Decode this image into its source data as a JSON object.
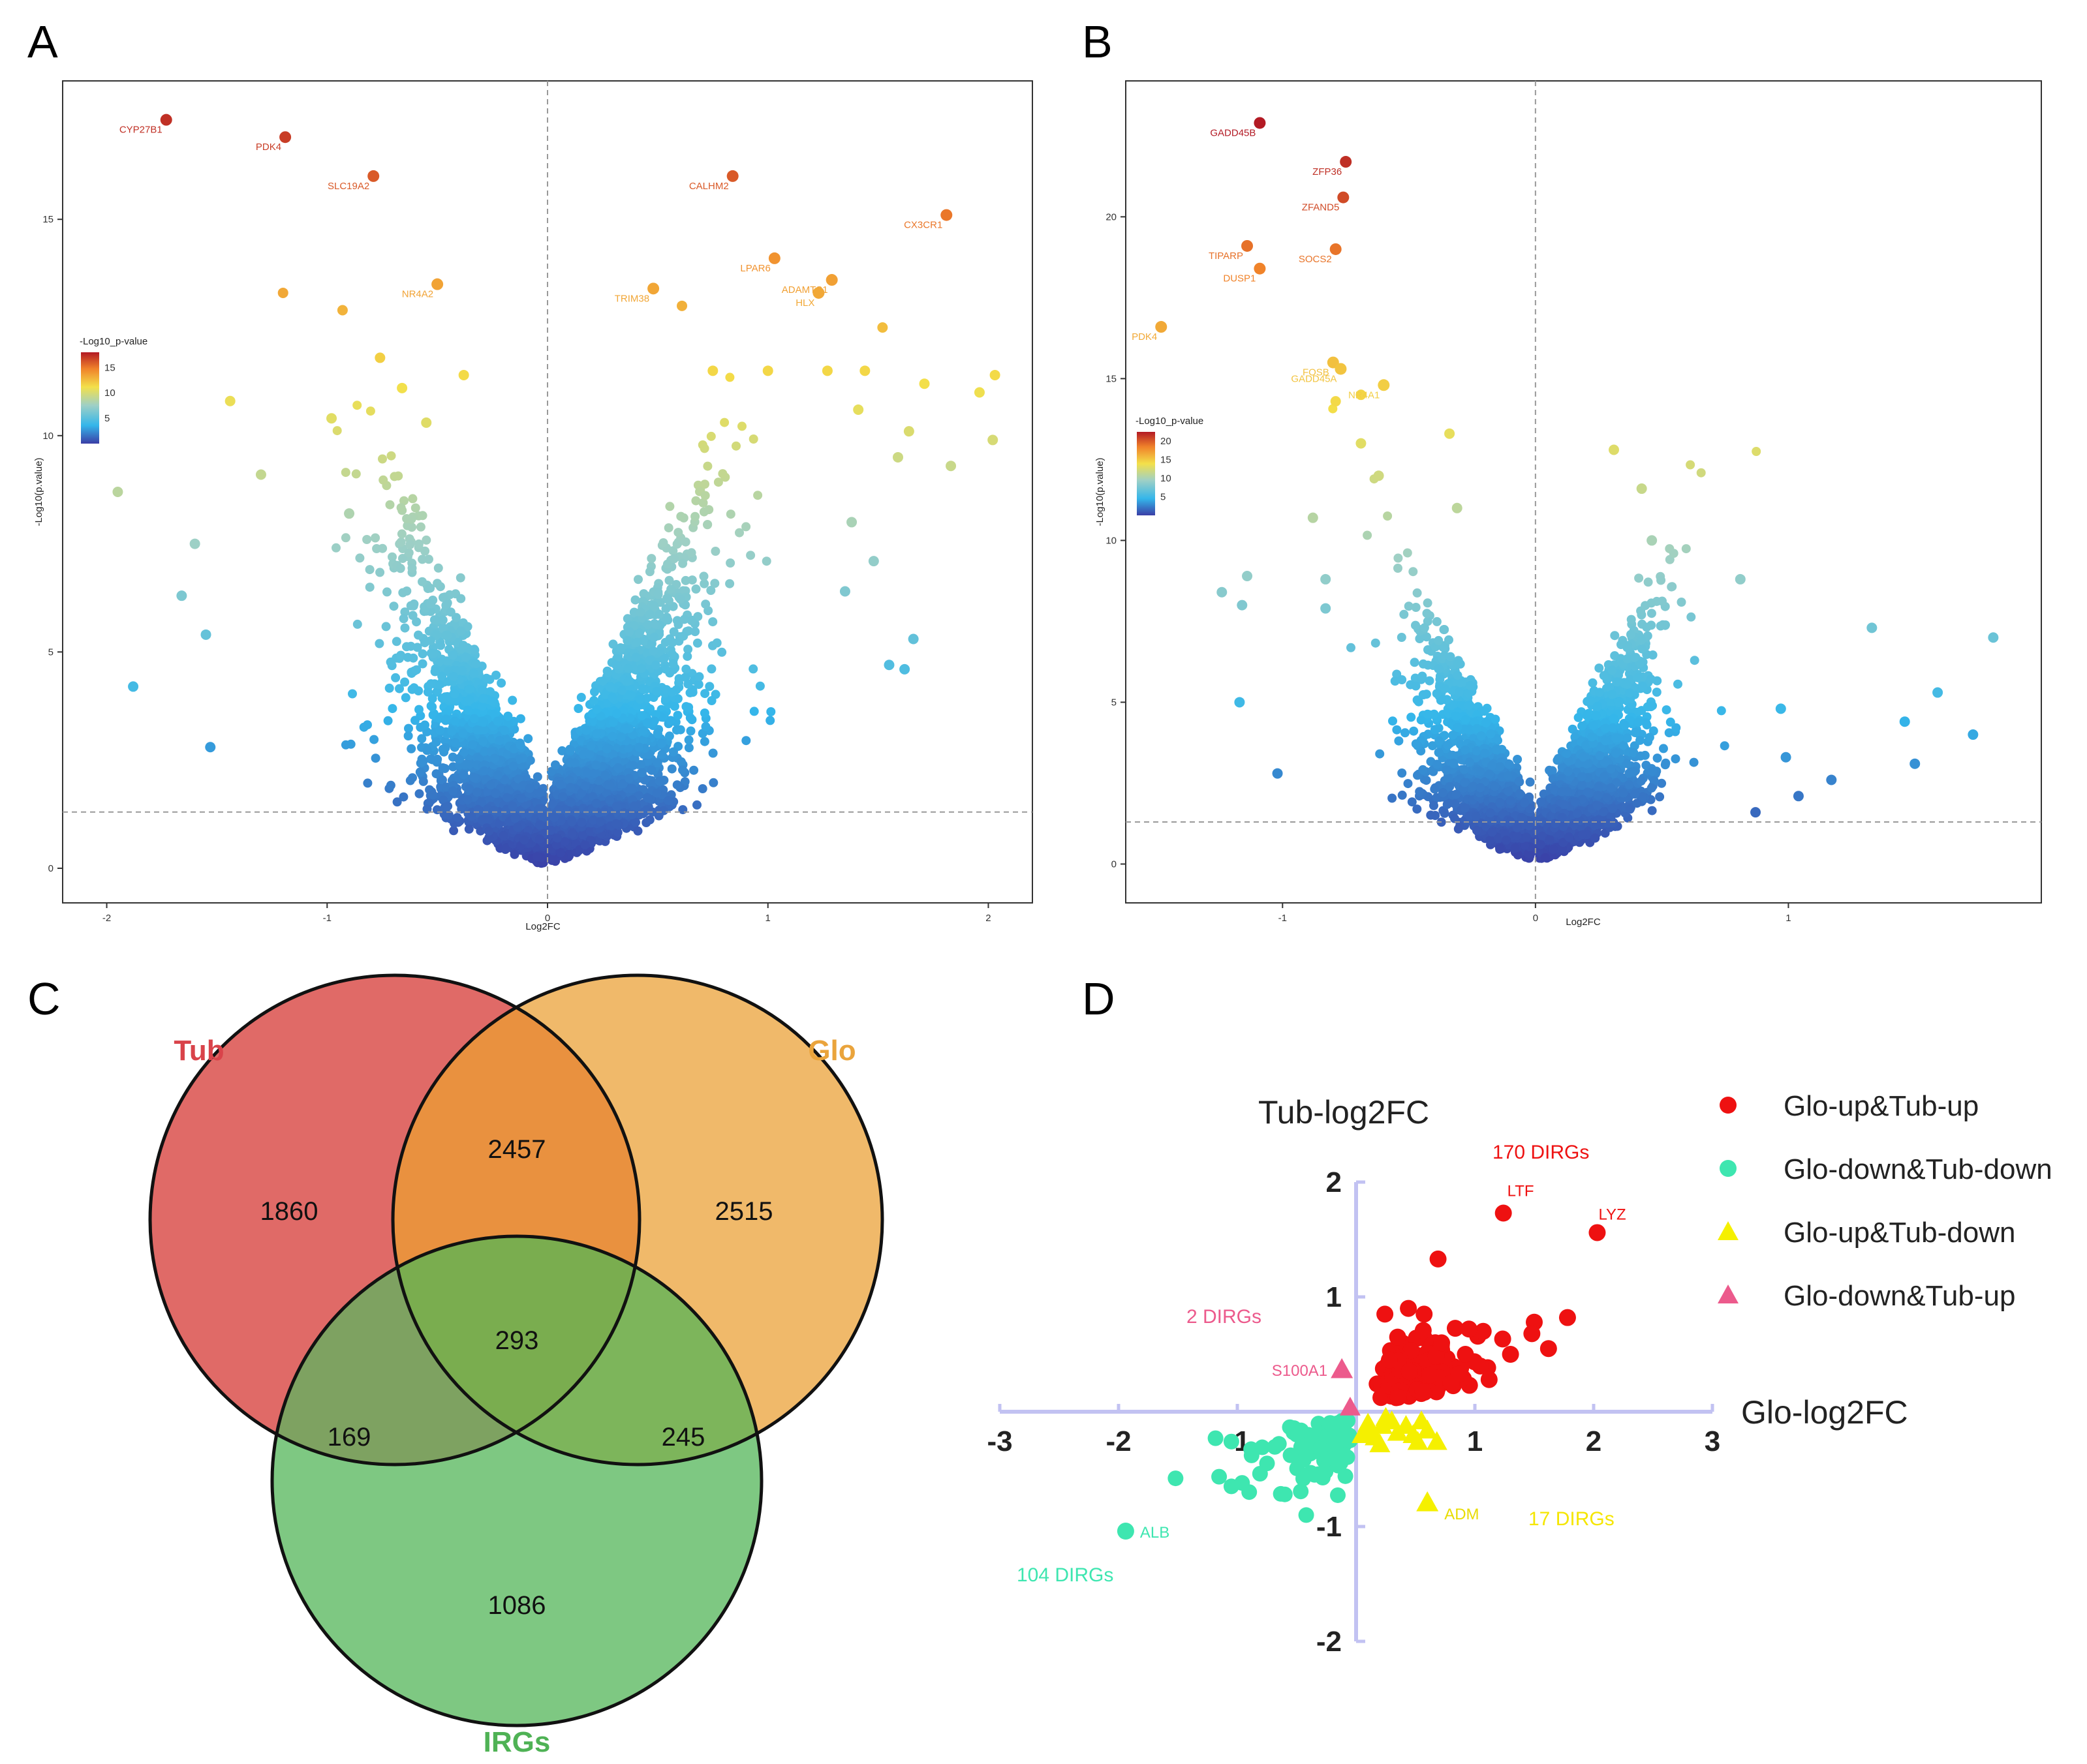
{
  "panels": {
    "a": "A",
    "b": "B",
    "c": "C",
    "d": "D"
  },
  "chart_data": [
    {
      "id": "A",
      "type": "scatter",
      "subtype": "volcano",
      "xlabel": "Log2FC",
      "ylabel": "-Log10(p.value)",
      "xlim": [
        -2.2,
        2.2
      ],
      "ylim": [
        -0.8,
        18.2
      ],
      "xticks": [
        -2,
        -1,
        0,
        1,
        2
      ],
      "yticks": [
        0,
        5,
        10,
        15
      ],
      "threshold_y": 1.3,
      "colorbar": {
        "title": "-Log10_p-value",
        "ticks": [
          5,
          10,
          15
        ],
        "range": [
          0,
          18
        ]
      },
      "labeled_points": [
        {
          "gene": "CYP27B1",
          "x": -1.73,
          "y": 17.3
        },
        {
          "gene": "PDK4",
          "x": -1.19,
          "y": 16.9
        },
        {
          "gene": "SLC19A2",
          "x": -0.79,
          "y": 16.0
        },
        {
          "gene": "NR4A2",
          "x": -0.5,
          "y": 13.5
        },
        {
          "gene": "CALHM2",
          "x": 0.84,
          "y": 16.0
        },
        {
          "gene": "CX3CR1",
          "x": 1.81,
          "y": 15.1
        },
        {
          "gene": "LPAR6",
          "x": 1.03,
          "y": 14.1
        },
        {
          "gene": "TRIM38",
          "x": 0.48,
          "y": 13.4
        },
        {
          "gene": "ADAMTS1",
          "x": 1.29,
          "y": 13.6
        },
        {
          "gene": "HLX",
          "x": 1.23,
          "y": 13.3
        }
      ],
      "other_points": [
        [
          -1.95,
          8.7
        ],
        [
          -1.88,
          4.2
        ],
        [
          -1.66,
          6.3
        ],
        [
          -1.6,
          7.5
        ],
        [
          -1.55,
          5.4
        ],
        [
          -1.53,
          2.8
        ],
        [
          -1.44,
          10.8
        ],
        [
          -1.3,
          9.1
        ],
        [
          -1.2,
          13.3
        ],
        [
          -0.98,
          10.4
        ],
        [
          -0.93,
          12.9
        ],
        [
          -0.9,
          8.2
        ],
        [
          -0.76,
          11.8
        ],
        [
          -0.66,
          11.1
        ],
        [
          -0.55,
          10.3
        ],
        [
          -0.38,
          11.4
        ],
        [
          1.52,
          12.5
        ],
        [
          1.44,
          11.5
        ],
        [
          1.59,
          9.5
        ],
        [
          1.64,
          10.1
        ],
        [
          1.71,
          11.2
        ],
        [
          1.83,
          9.3
        ],
        [
          2.03,
          11.4
        ],
        [
          1.96,
          11.0
        ],
        [
          2.02,
          9.9
        ],
        [
          1.55,
          4.7
        ],
        [
          1.62,
          4.6
        ],
        [
          1.66,
          5.3
        ],
        [
          1.35,
          6.4
        ],
        [
          0.61,
          13.0
        ],
        [
          0.75,
          11.5
        ],
        [
          1.0,
          11.5
        ],
        [
          1.27,
          11.5
        ],
        [
          1.41,
          10.6
        ],
        [
          1.38,
          8.0
        ],
        [
          1.48,
          7.1
        ]
      ]
    },
    {
      "id": "B",
      "type": "scatter",
      "subtype": "volcano",
      "xlabel": "Log2FC",
      "ylabel": "-Log10(p.value)",
      "xlim": [
        -1.62,
        2.0
      ],
      "ylim": [
        -1.2,
        24.2
      ],
      "xticks": [
        -1,
        0,
        1
      ],
      "yticks": [
        0,
        5,
        10,
        15,
        20
      ],
      "threshold_y": 1.3,
      "colorbar": {
        "title": "-Log10_p-value",
        "ticks": [
          5,
          10,
          15,
          20
        ],
        "range": [
          0,
          22.5
        ]
      },
      "labeled_points": [
        {
          "gene": "GADD45B",
          "x": -1.09,
          "y": 22.9
        },
        {
          "gene": "ZFP36",
          "x": -0.75,
          "y": 21.7
        },
        {
          "gene": "ZFAND5",
          "x": -0.76,
          "y": 20.6
        },
        {
          "gene": "TIPARP",
          "x": -1.14,
          "y": 19.1
        },
        {
          "gene": "SOCS2",
          "x": -0.79,
          "y": 19.0
        },
        {
          "gene": "DUSP1",
          "x": -1.09,
          "y": 18.4
        },
        {
          "gene": "PDK4",
          "x": -1.48,
          "y": 16.6
        },
        {
          "gene": "FOSB",
          "x": -0.8,
          "y": 15.5
        },
        {
          "gene": "GADD45A",
          "x": -0.77,
          "y": 15.3
        },
        {
          "gene": "NR4A1",
          "x": -0.6,
          "y": 14.8
        }
      ],
      "other_points": [
        [
          -0.69,
          14.5
        ],
        [
          -0.79,
          14.3
        ],
        [
          -0.69,
          13.0
        ],
        [
          -1.24,
          8.4
        ],
        [
          -1.14,
          8.9
        ],
        [
          -1.16,
          8.0
        ],
        [
          -1.17,
          5.0
        ],
        [
          -1.02,
          2.8
        ],
        [
          -0.88,
          10.7
        ],
        [
          -0.83,
          8.8
        ],
        [
          -0.83,
          7.9
        ],
        [
          -0.62,
          12.0
        ],
        [
          -0.34,
          13.3
        ],
        [
          -0.31,
          11.0
        ],
        [
          1.33,
          7.3
        ],
        [
          1.81,
          7.0
        ],
        [
          1.59,
          5.3
        ],
        [
          1.73,
          4.0
        ],
        [
          1.5,
          3.1
        ],
        [
          1.46,
          4.4
        ],
        [
          1.17,
          2.6
        ],
        [
          1.04,
          2.1
        ],
        [
          0.99,
          3.3
        ],
        [
          0.87,
          1.6
        ],
        [
          0.97,
          4.8
        ],
        [
          0.31,
          12.8
        ],
        [
          0.42,
          11.6
        ],
        [
          0.46,
          10.0
        ],
        [
          0.81,
          8.8
        ]
      ]
    },
    {
      "id": "C",
      "type": "venn",
      "sets": [
        {
          "name": "Tub",
          "color": "#e06060"
        },
        {
          "name": "Glo",
          "color": "#f0b866"
        },
        {
          "name": "IRGs",
          "color": "#7ec882"
        }
      ],
      "regions": [
        {
          "sets": [
            "Tub"
          ],
          "value": 1860
        },
        {
          "sets": [
            "Tub",
            "Glo"
          ],
          "value": 2457
        },
        {
          "sets": [
            "Glo"
          ],
          "value": 2515
        },
        {
          "sets": [
            "Tub",
            "Glo",
            "IRGs"
          ],
          "value": 293
        },
        {
          "sets": [
            "Tub",
            "IRGs"
          ],
          "value": 169
        },
        {
          "sets": [
            "Glo",
            "IRGs"
          ],
          "value": 245
        },
        {
          "sets": [
            "IRGs"
          ],
          "value": 1086
        }
      ]
    },
    {
      "id": "D",
      "type": "scatter",
      "xlabel": "Glo-log2FC",
      "ylabel": "Tub-log2FC",
      "xlim": [
        -3,
        3
      ],
      "ylim": [
        -2,
        2
      ],
      "xticks": [
        -3,
        -2,
        -1,
        1,
        2,
        3
      ],
      "yticks": [
        -2,
        -1,
        1,
        2
      ],
      "legend": [
        {
          "label": "Glo-up&Tub-up",
          "marker": "circle",
          "color": "#ee1111"
        },
        {
          "label": "Glo-down&Tub-down",
          "marker": "circle",
          "color": "#3ee6b0"
        },
        {
          "label": "Glo-up&Tub-down",
          "marker": "triangle",
          "color": "#f5f000"
        },
        {
          "label": "Glo-down&Tub-up",
          "marker": "triangle",
          "color": "#ec5a8c"
        }
      ],
      "group_counts": [
        {
          "group": "Glo-up&Tub-up",
          "label": "170 DIRGs",
          "color": "#ee1111"
        },
        {
          "group": "Glo-down&Tub-up",
          "label": "2 DIRGs",
          "color": "#ec5a8c"
        },
        {
          "group": "Glo-down&Tub-down",
          "label": "104 DIRGs",
          "color": "#3ee6b0"
        },
        {
          "group": "Glo-up&Tub-down",
          "label": "17 DIRGs",
          "color": "#f5f000"
        }
      ],
      "labeled_points": [
        {
          "gene": "LTF",
          "x": 1.24,
          "y": 1.73,
          "group": "Glo-up&Tub-up"
        },
        {
          "gene": "LYZ",
          "x": 2.03,
          "y": 1.56,
          "group": "Glo-up&Tub-up"
        },
        {
          "gene": "S100A1",
          "x": -0.12,
          "y": 0.37,
          "group": "Glo-down&Tub-up"
        },
        {
          "gene": "ADM",
          "x": 0.6,
          "y": -0.79,
          "group": "Glo-up&Tub-down"
        },
        {
          "gene": "ALB",
          "x": -1.94,
          "y": -1.04,
          "group": "Glo-down&Tub-down"
        }
      ],
      "points": {
        "up_up": [
          [
            0.69,
            1.33
          ],
          [
            0.44,
            0.9
          ],
          [
            1.78,
            0.82
          ],
          [
            1.5,
            0.78
          ],
          [
            1.07,
            0.7
          ],
          [
            0.35,
            0.65
          ],
          [
            1.48,
            0.68
          ],
          [
            1.62,
            0.55
          ],
          [
            1.3,
            0.5
          ],
          [
            0.95,
            0.72
          ],
          [
            0.72,
            0.6
          ],
          [
            0.45,
            0.35
          ],
          [
            0.8,
            0.25
          ],
          [
            1.12,
            0.28
          ],
          [
            0.28,
            0.45
          ],
          [
            0.92,
            0.5
          ]
        ],
        "down_up": [
          [
            -0.05,
            0.04
          ]
        ],
        "up_down": [
          [
            0.1,
            -0.1
          ],
          [
            0.12,
            -0.18
          ],
          [
            0.16,
            -0.22
          ],
          [
            0.22,
            -0.12
          ],
          [
            0.3,
            -0.08
          ],
          [
            0.42,
            -0.12
          ],
          [
            0.48,
            -0.2
          ],
          [
            0.55,
            -0.08
          ],
          [
            0.68,
            -0.26
          ],
          [
            0.05,
            -0.2
          ],
          [
            0.2,
            -0.28
          ],
          [
            0.35,
            -0.18
          ],
          [
            0.6,
            -0.16
          ],
          [
            0.25,
            -0.05
          ],
          [
            0.52,
            -0.26
          ]
        ],
        "down_down": [
          [
            -1.52,
            -0.58
          ],
          [
            -1.05,
            -0.26
          ],
          [
            -0.96,
            -0.62
          ],
          [
            -0.88,
            -0.38
          ],
          [
            -0.75,
            -0.45
          ],
          [
            -0.6,
            -0.72
          ],
          [
            -0.5,
            -0.2
          ],
          [
            -0.42,
            -0.9
          ],
          [
            -0.3,
            -0.32
          ],
          [
            -0.2,
            -0.12
          ],
          [
            -0.12,
            -0.08
          ],
          [
            -0.08,
            -0.2
          ],
          [
            -0.9,
            -0.7
          ],
          [
            -1.05,
            -0.65
          ],
          [
            -0.65,
            -0.28
          ],
          [
            -0.35,
            -0.55
          ]
        ]
      }
    }
  ]
}
